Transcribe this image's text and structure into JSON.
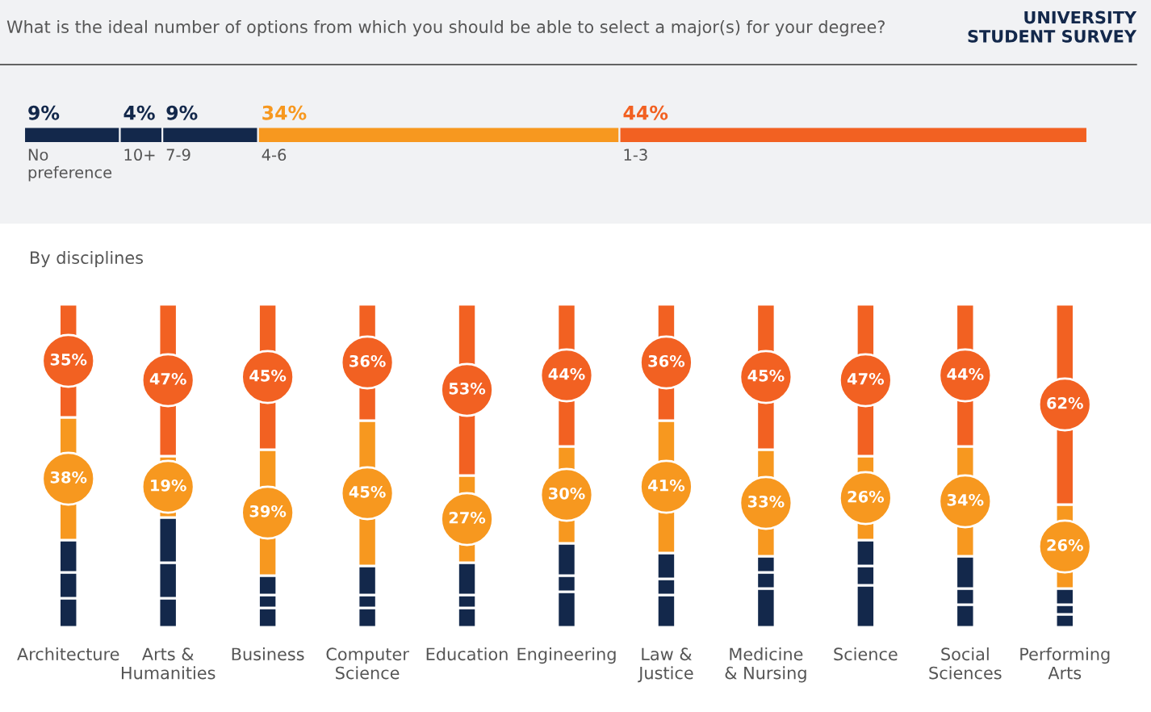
{
  "chart_data": [
    {
      "type": "bar",
      "title": "What is the ideal number of options from which you should be able to select a major(s) for your degree?",
      "annotations": [
        "UNIVERSITY\nSTUDENT SURVEY"
      ],
      "orientation": "horizontal",
      "stacked": true,
      "categories": [
        null
      ],
      "series": [
        {
          "name": "No\npreference",
          "color": "#13284b",
          "values": [
            9
          ],
          "value_labels": [
            "9%"
          ]
        },
        {
          "name": "10+",
          "color": "#13284b",
          "values": [
            4
          ],
          "value_labels": [
            "4%"
          ]
        },
        {
          "name": "7-9",
          "color": "#13284b",
          "values": [
            9
          ],
          "value_labels": [
            "9%"
          ]
        },
        {
          "name": "4-6",
          "color": "#f7981f",
          "values": [
            34
          ],
          "value_labels": [
            "34%"
          ]
        },
        {
          "name": "1-3",
          "color": "#f26122",
          "values": [
            44
          ],
          "value_labels": [
            "44%"
          ]
        }
      ]
    },
    {
      "type": "bar",
      "title": "By disciplines",
      "stacked": true,
      "categories": [
        "Architecture",
        "Arts &\nHumanities",
        "Business",
        "Computer\nScience",
        "Education",
        "Engineering",
        "Law &\nJustice",
        "Medicine\n& Nursing",
        "Science",
        "Social\nSciences",
        "Performing\nArts"
      ],
      "series": [
        {
          "color": "#13284b",
          "values": [
            9,
            9,
            6,
            6,
            6,
            11,
            10,
            12,
            13,
            7,
            4
          ]
        },
        {
          "color": "#13284b",
          "values": [
            8,
            11,
            4,
            4,
            4,
            5,
            5,
            5,
            6,
            5,
            3
          ]
        },
        {
          "color": "#13284b",
          "values": [
            10,
            14,
            6,
            9,
            10,
            10,
            8,
            5,
            8,
            10,
            5
          ]
        },
        {
          "color": "#f7981f",
          "values": [
            38,
            19,
            39,
            45,
            27,
            30,
            41,
            33,
            26,
            34,
            26
          ],
          "value_labels": [
            "38%",
            "19%",
            "39%",
            "45%",
            "27%",
            "30%",
            "41%",
            "33%",
            "26%",
            "34%",
            "26%"
          ]
        },
        {
          "color": "#f26122",
          "values": [
            35,
            47,
            45,
            36,
            53,
            44,
            36,
            45,
            47,
            44,
            62
          ],
          "value_labels": [
            "35%",
            "47%",
            "45%",
            "36%",
            "53%",
            "44%",
            "36%",
            "45%",
            "47%",
            "44%",
            "62%"
          ]
        }
      ]
    }
  ]
}
